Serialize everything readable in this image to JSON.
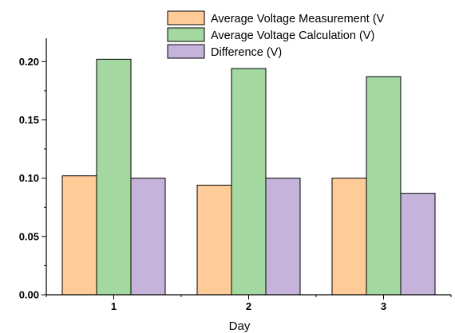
{
  "chart_data": {
    "type": "bar",
    "categories": [
      "1",
      "2",
      "3"
    ],
    "series": [
      {
        "name": "Average Voltage Measurement (V",
        "values": [
          0.102,
          0.094,
          0.1
        ],
        "color": "#ffcc99"
      },
      {
        "name": "Average Voltage Calculation (V)",
        "values": [
          0.202,
          0.194,
          0.187
        ],
        "color": "#a3d9a0"
      },
      {
        "name": "Difference (V)",
        "values": [
          0.1,
          0.1,
          0.087
        ],
        "color": "#c6b3dc"
      }
    ],
    "xlabel": "Day",
    "ylabel": "",
    "ylim": [
      0,
      0.22
    ],
    "yticks": [
      "0.00",
      "0.05",
      "0.10",
      "0.15",
      "0.20"
    ],
    "grid": false,
    "legend_position": "top-right"
  }
}
